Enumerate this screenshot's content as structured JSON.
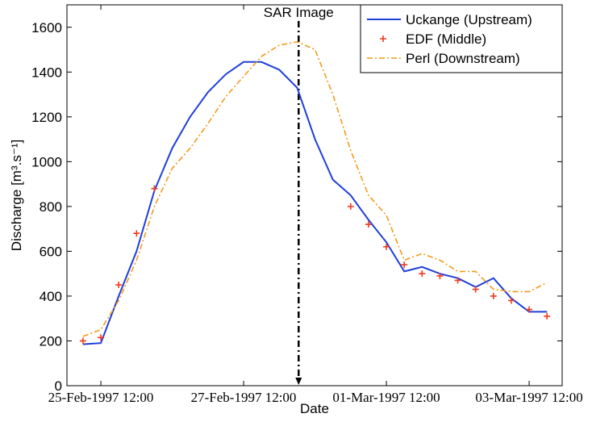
{
  "chart_data": {
    "type": "line",
    "x_label": "Date",
    "y_label": "Discharge [m³.s⁻¹]",
    "annotation": {
      "text": "SAR Image",
      "x": "1997-02-28 06:30"
    },
    "x": [
      "1997-02-25 06:00",
      "1997-02-25 12:00",
      "1997-02-25 18:00",
      "1997-02-26 00:00",
      "1997-02-26 06:00",
      "1997-02-26 12:00",
      "1997-02-26 18:00",
      "1997-02-27 00:00",
      "1997-02-27 06:00",
      "1997-02-27 12:00",
      "1997-02-27 18:00",
      "1997-02-28 00:00",
      "1997-02-28 06:00",
      "1997-02-28 12:00",
      "1997-02-28 18:00",
      "1997-03-01 00:00",
      "1997-03-01 06:00",
      "1997-03-01 12:00",
      "1997-03-01 18:00",
      "1997-03-02 00:00",
      "1997-03-02 06:00",
      "1997-03-02 12:00",
      "1997-03-02 18:00",
      "1997-03-03 00:00",
      "1997-03-03 06:00",
      "1997-03-03 12:00",
      "1997-03-03 18:00"
    ],
    "series": [
      {
        "name": "Uckange (Upstream)",
        "color": "#1f3fd9",
        "style": "solid",
        "values": [
          185,
          190,
          400,
          600,
          870,
          1060,
          1200,
          1310,
          1390,
          1445,
          1445,
          1410,
          1330,
          1100,
          920,
          850,
          740,
          640,
          510,
          530,
          500,
          480,
          440,
          480,
          390,
          330,
          330
        ]
      },
      {
        "name": "EDF (Middle)",
        "color": "#f03a1e",
        "style": "marker",
        "values": [
          200,
          215,
          450,
          680,
          880,
          null,
          null,
          null,
          null,
          null,
          null,
          null,
          null,
          null,
          null,
          800,
          720,
          620,
          540,
          500,
          490,
          470,
          430,
          400,
          380,
          340,
          310
        ]
      },
      {
        "name": "Perl (Downstream)",
        "color": "#f39a1c",
        "style": "dashdot",
        "values": [
          220,
          250,
          380,
          560,
          800,
          970,
          1060,
          1170,
          1290,
          1380,
          1470,
          1520,
          1535,
          1500,
          1300,
          1050,
          850,
          760,
          560,
          590,
          560,
          510,
          510,
          430,
          420,
          420,
          460
        ]
      }
    ],
    "xlim": [
      "1997-02-25 00:36",
      "1997-03-03 23:06"
    ],
    "xticks": [
      {
        "value": "1997-02-25 12:00",
        "label": "25-Feb-1997 12:00"
      },
      {
        "value": "1997-02-27 12:00",
        "label": "27-Feb-1997 12:00"
      },
      {
        "value": "1997-03-01 12:00",
        "label": "01-Mar-1997 12:00"
      },
      {
        "value": "1997-03-03 12:00",
        "label": "03-Mar-1997 12:00"
      }
    ],
    "ylim": [
      0,
      1700
    ],
    "yticks": [
      0,
      200,
      400,
      600,
      800,
      1000,
      1200,
      1400,
      1600
    ],
    "legend": "upper right"
  }
}
